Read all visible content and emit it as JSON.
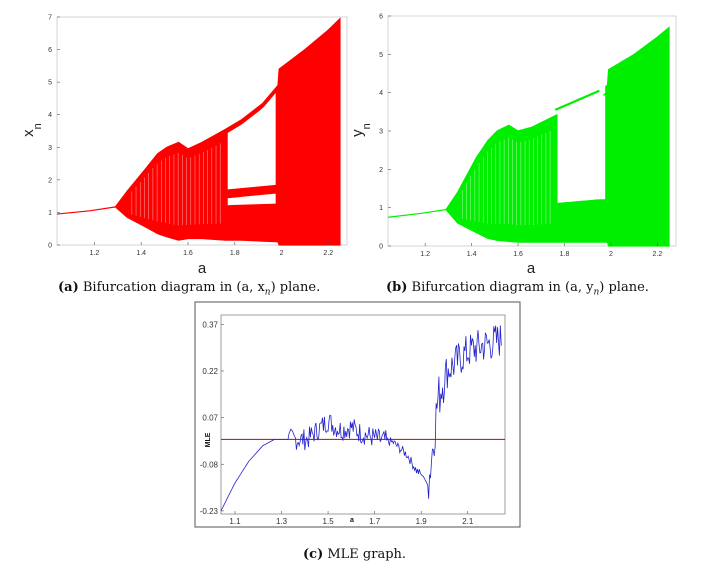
{
  "captions": {
    "a_tag": "(a)",
    "a_text": "Bifurcation diagram in (a, x",
    "a_sub": "n",
    "a_tail": ") plane.",
    "b_tag": "(b)",
    "b_text": "Bifurcation diagram in (a, y",
    "b_sub": "n",
    "b_tail": ") plane.",
    "c_tag": "(c)",
    "c_text": "MLE graph."
  },
  "chart_data": [
    {
      "type": "scatter",
      "panel": "a",
      "xlabel": "a",
      "ylabel": "x",
      "ylabel_sub": "n",
      "xlim": [
        1.04,
        2.28
      ],
      "ylim": [
        0,
        7
      ],
      "xticks": [
        1.2,
        1.4,
        1.6,
        1.8,
        2,
        2.2
      ],
      "xtick_labels": [
        "1.2",
        "1.4",
        "1.6",
        "1.8",
        "2",
        "2.2"
      ],
      "yticks": [
        0,
        1,
        2,
        3,
        4,
        5,
        6,
        7
      ],
      "ytick_labels": [
        "0",
        "1",
        "2",
        "3",
        "4",
        "5",
        "6",
        "7"
      ],
      "color": "#ff0000",
      "envelope": {
        "a": [
          1.04,
          1.18,
          1.29,
          1.34,
          1.42,
          1.47,
          1.51,
          1.56,
          1.6,
          1.66,
          1.76,
          1.83,
          1.92,
          1.985,
          1.99,
          2.1,
          2.2,
          2.25
        ],
        "high": [
          0.95,
          1.05,
          1.17,
          1.65,
          2.35,
          2.8,
          3.0,
          3.15,
          2.95,
          3.15,
          3.55,
          3.85,
          4.35,
          4.9,
          5.4,
          6.0,
          6.6,
          6.95
        ],
        "low": [
          0.95,
          1.05,
          1.17,
          0.85,
          0.55,
          0.35,
          0.25,
          0.15,
          0.2,
          0.2,
          0.15,
          0.15,
          0.12,
          0.1,
          0.0,
          0.0,
          0.0,
          0.0
        ]
      },
      "periodic_branches": [
        {
          "a": [
            1.76,
            1.98
          ],
          "y": [
            1.55,
            1.7
          ]
        },
        {
          "a": [
            1.76,
            1.98
          ],
          "y": [
            1.1,
            1.15
          ]
        },
        {
          "a": [
            1.76,
            1.98
          ],
          "y": [
            0.3,
            0.25
          ]
        }
      ]
    },
    {
      "type": "scatter",
      "panel": "b",
      "xlabel": "a",
      "ylabel": "y",
      "ylabel_sub": "n",
      "xlim": [
        1.04,
        2.28
      ],
      "ylim": [
        0,
        6
      ],
      "xticks": [
        1.2,
        1.4,
        1.6,
        1.8,
        2,
        2.2
      ],
      "xtick_labels": [
        "1.2",
        "1.4",
        "1.6",
        "1.8",
        "2",
        "2.2"
      ],
      "yticks": [
        0,
        1,
        2,
        3,
        4,
        5,
        6
      ],
      "ytick_labels": [
        "0",
        "1",
        "2",
        "3",
        "4",
        "5",
        "6"
      ],
      "color": "#00ee00",
      "envelope": {
        "a": [
          1.04,
          1.18,
          1.29,
          1.34,
          1.42,
          1.47,
          1.51,
          1.56,
          1.6,
          1.66,
          1.76,
          1.83,
          1.94,
          1.985,
          1.99,
          2.1,
          2.2,
          2.25
        ],
        "high": [
          0.75,
          0.85,
          0.95,
          1.4,
          2.3,
          2.75,
          3.0,
          3.15,
          3.0,
          3.1,
          3.4,
          3.6,
          3.95,
          4.2,
          4.6,
          5.0,
          5.45,
          5.7
        ],
        "low": [
          0.75,
          0.85,
          0.95,
          0.6,
          0.35,
          0.2,
          0.15,
          0.12,
          0.1,
          0.1,
          0.1,
          0.1,
          0.1,
          0.1,
          0.0,
          0.0,
          0.0,
          0.0
        ]
      },
      "periodic_branches": [
        {
          "a": [
            1.76,
            1.95
          ],
          "y": [
            3.55,
            4.05
          ]
        },
        {
          "a": [
            1.76,
            1.95
          ],
          "y": [
            1.0,
            1.1
          ]
        },
        {
          "a": [
            1.76,
            1.95
          ],
          "y": [
            0.2,
            0.15
          ]
        }
      ]
    },
    {
      "type": "line",
      "panel": "c",
      "xlabel": "a",
      "ylabel": "MLE",
      "xlim": [
        1.04,
        2.26
      ],
      "ylim": [
        -0.24,
        0.4
      ],
      "xticks": [
        1.1,
        1.3,
        1.5,
        1.7,
        1.9,
        2.1
      ],
      "xtick_labels": [
        "1.1",
        "1.3",
        "1.5",
        "1.7",
        "1.9",
        "2.1"
      ],
      "yticks": [
        -0.23,
        -0.08,
        0.07,
        0.22,
        0.37
      ],
      "ytick_labels": [
        "-0.23",
        "-0.08",
        "0.07",
        "0.22",
        "0.37"
      ],
      "series": [
        {
          "color": "#2222cc",
          "x": [
            1.04,
            1.1,
            1.16,
            1.22,
            1.27,
            1.29,
            1.33,
            1.37,
            1.41,
            1.44,
            1.47,
            1.5,
            1.53,
            1.56,
            1.6,
            1.64,
            1.68,
            1.72,
            1.78,
            1.84,
            1.88,
            1.91,
            1.93,
            1.95,
            1.97,
            1.99,
            2.01,
            2.04,
            2.08,
            2.12,
            2.16,
            2.2,
            2.24
          ],
          "y": [
            -0.23,
            -0.14,
            -0.07,
            -0.02,
            0.0,
            0.0,
            0.0,
            0.0,
            0.0,
            0.02,
            0.04,
            0.06,
            0.04,
            0.03,
            0.04,
            0.02,
            0.01,
            0.0,
            -0.01,
            -0.05,
            -0.1,
            -0.12,
            -0.15,
            -0.02,
            0.12,
            0.18,
            0.22,
            0.24,
            0.27,
            0.29,
            0.3,
            0.31,
            0.32
          ]
        }
      ],
      "reference_line": {
        "y": 0.0,
        "color": "#cc0000"
      }
    }
  ]
}
